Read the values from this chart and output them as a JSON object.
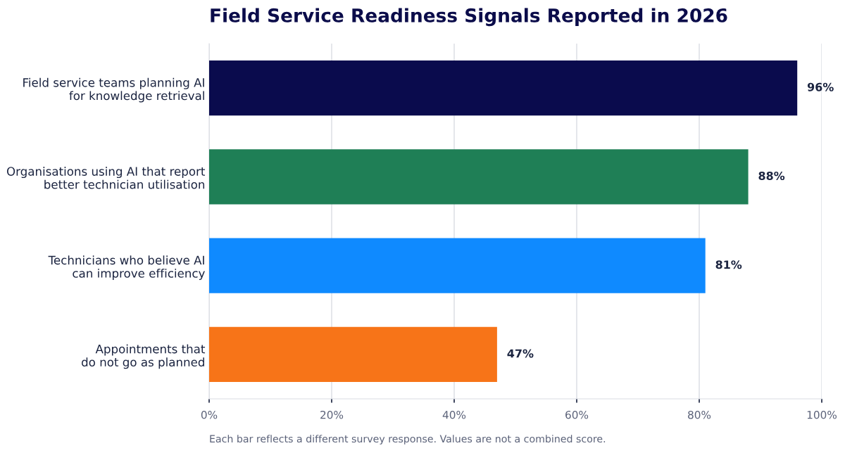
{
  "chart_data": {
    "type": "bar",
    "orientation": "horizontal",
    "title": "Field Service Readiness Signals Reported in 2026",
    "categories": [
      "Field service teams planning AI\nfor knowledge retrieval",
      "Organisations using AI that report\nbetter technician utilisation",
      "Technicians who believe AI\ncan improve efficiency",
      "Appointments that\ndo not go as planned"
    ],
    "values": [
      96,
      88,
      81,
      47
    ],
    "colors": [
      "#0a0b4d",
      "#1f7f56",
      "#0f8aff",
      "#f77418"
    ],
    "value_labels": [
      "96%",
      "88%",
      "81%",
      "47%"
    ],
    "xlim": [
      0,
      100
    ],
    "xticks": [
      {
        "value": 0,
        "label": "0%"
      },
      {
        "value": 20,
        "label": "20%"
      },
      {
        "value": 40,
        "label": "40%"
      },
      {
        "value": 60,
        "label": "60%"
      },
      {
        "value": 80,
        "label": "80%"
      },
      {
        "value": 100,
        "label": "100%"
      }
    ],
    "grid": "x",
    "annotations": [
      "Each bar reflects a different survey response. Values are not a combined score."
    ]
  }
}
